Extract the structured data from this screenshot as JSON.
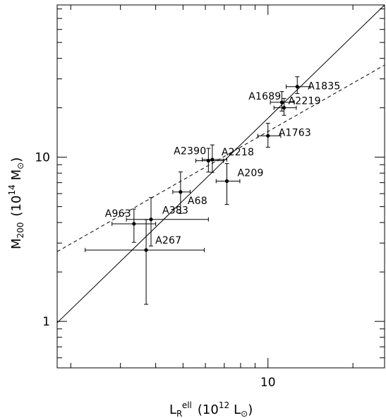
{
  "chart_data": {
    "type": "scatter",
    "xscale": "log",
    "yscale": "log",
    "xlim": [
      1.79,
      25.9
    ],
    "ylim": [
      0.521,
      84.6
    ],
    "xlabel": {
      "base": "L",
      "sub": "R",
      "sup": "ell",
      "units": "(10",
      "units_exp": "12",
      "units_symbol": "L",
      "units_sub": "⊙",
      "units_close": ")"
    },
    "ylabel": {
      "base": "M",
      "sub": "200",
      "units": "(10",
      "units_exp": "14",
      "units_symbol": "M",
      "units_sub": "⊙",
      "units_close": ")"
    },
    "x_tick_labels": [
      {
        "value": 10,
        "label": "10"
      }
    ],
    "y_tick_labels": [
      {
        "value": 1,
        "label": "1"
      },
      {
        "value": 10,
        "label": "10"
      }
    ],
    "points": [
      {
        "name": "A1835",
        "x": 12.7,
        "y": 26.9,
        "xerr": [
          1.1,
          1.4
        ],
        "yerr": [
          2.5,
          4.0
        ]
      },
      {
        "name": "A1689",
        "x": 11.2,
        "y": 21.6,
        "xerr": [
          1.0,
          1.2
        ],
        "yerr": [
          2.5,
          3.5
        ]
      },
      {
        "name": "A2219",
        "x": 11.4,
        "y": 20.0,
        "xerr": [
          0.9,
          1.2
        ],
        "yerr": [
          2.0,
          2.8
        ]
      },
      {
        "name": "A1763",
        "x": 10.0,
        "y": 13.5,
        "xerr": [
          0.8,
          1.1
        ],
        "yerr": [
          2.0,
          2.6
        ]
      },
      {
        "name": "A2390",
        "x": 6.15,
        "y": 9.52,
        "xerr": [
          0.6,
          0.8
        ],
        "yerr": [
          1.4,
          1.8
        ]
      },
      {
        "name": "A2218",
        "x": 6.35,
        "y": 9.68,
        "xerr": [
          0.5,
          0.8
        ],
        "yerr": [
          1.6,
          2.2
        ]
      },
      {
        "name": "A209",
        "x": 7.15,
        "y": 7.15,
        "xerr": [
          0.6,
          0.8
        ],
        "yerr": [
          2.0,
          2.0
        ]
      },
      {
        "name": "A68",
        "x": 4.9,
        "y": 6.14,
        "xerr": [
          0.3,
          0.4
        ],
        "yerr": [
          1.6,
          2.0
        ]
      },
      {
        "name": "A963",
        "x": 3.35,
        "y": 3.93,
        "xerr": [
          0.55,
          0.65
        ],
        "yerr": [
          0.9,
          0.9
        ]
      },
      {
        "name": "A383",
        "x": 3.85,
        "y": 4.18,
        "xerr": [
          0.7,
          2.3
        ],
        "yerr": [
          1.3,
          1.5
        ]
      },
      {
        "name": "A267",
        "x": 3.7,
        "y": 2.72,
        "xerr": [
          1.45,
          2.25
        ],
        "yerr": [
          1.45,
          1.45
        ]
      }
    ],
    "fit_lines": [
      {
        "style": "solid",
        "points": [
          [
            1.79,
            0.98
          ],
          [
            25.9,
            84.6
          ]
        ]
      },
      {
        "style": "dashed",
        "points": [
          [
            1.79,
            2.66
          ],
          [
            25.9,
            36.4
          ]
        ]
      }
    ]
  }
}
